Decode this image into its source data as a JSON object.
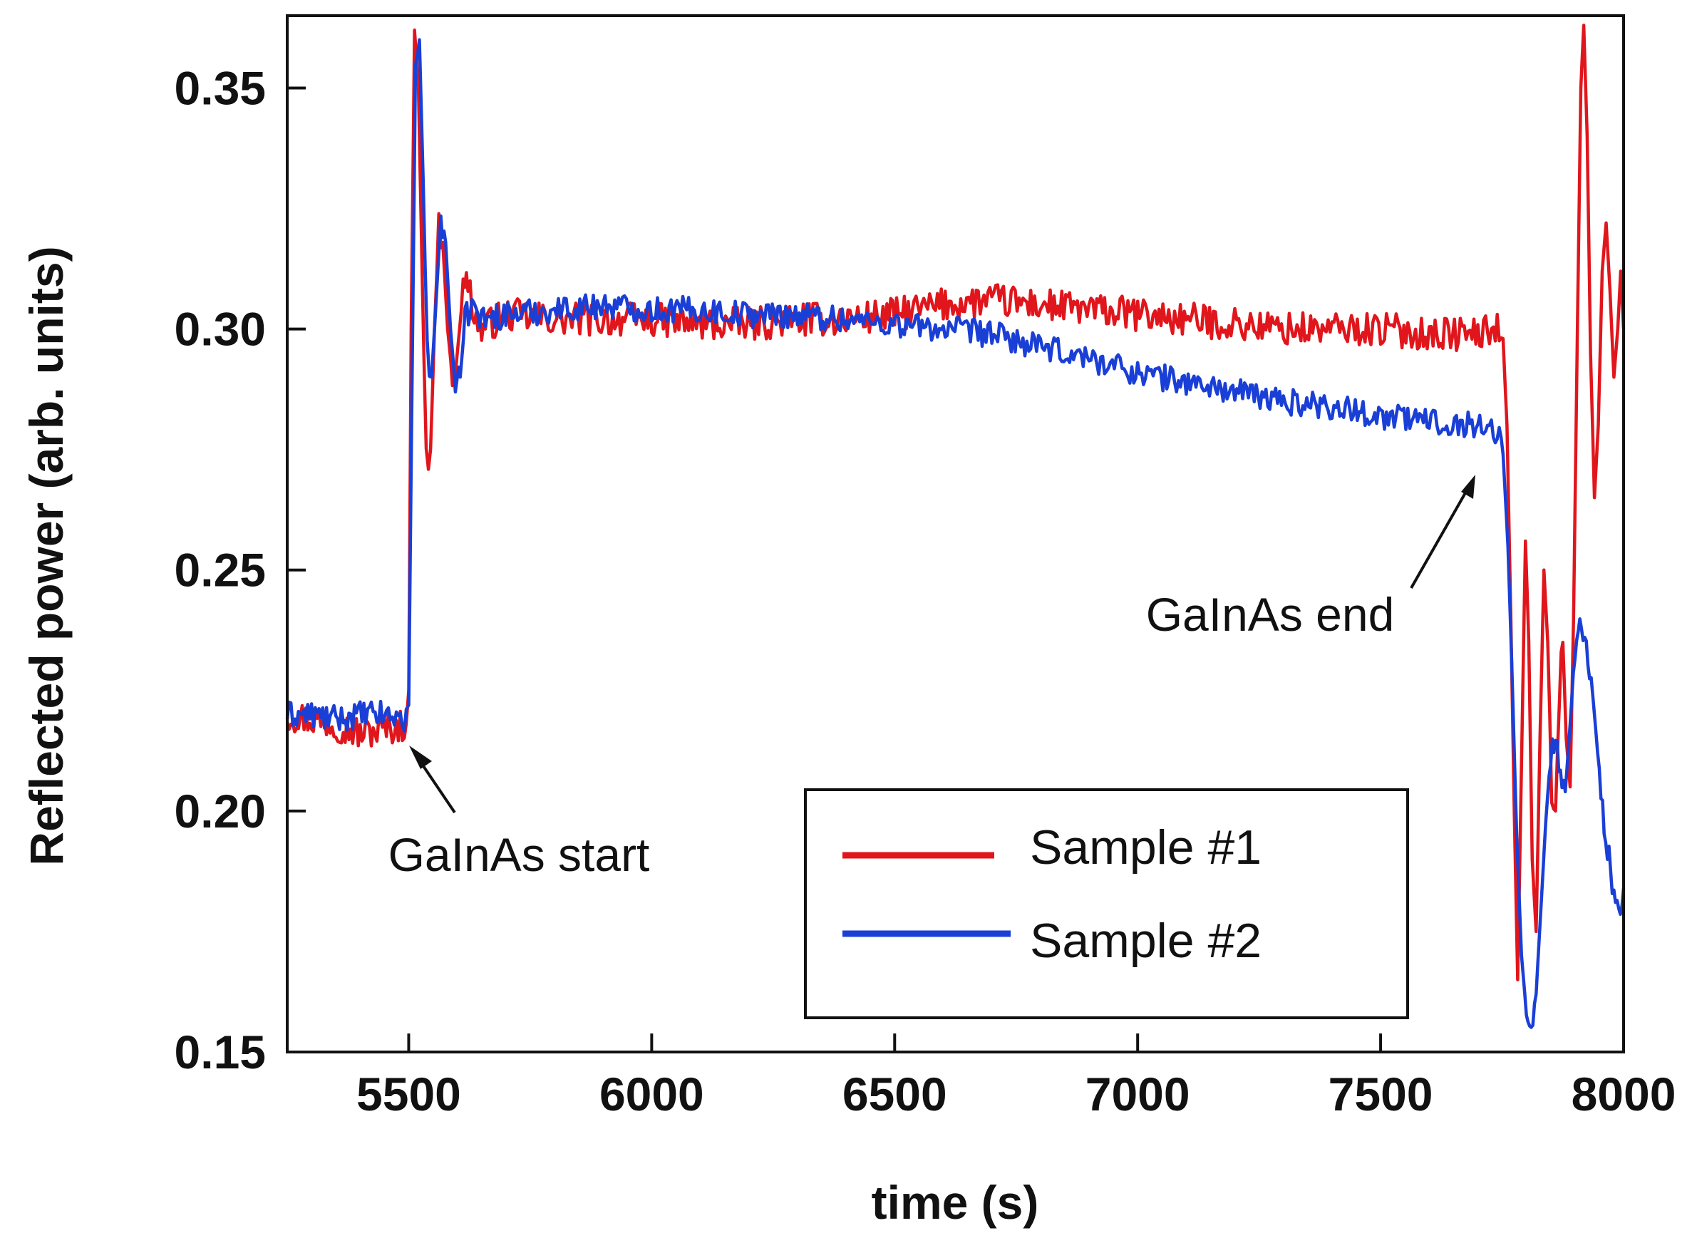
{
  "chart_data": {
    "type": "line",
    "title": "",
    "xlabel": "time (s)",
    "ylabel": "Reflected power (arb. units)",
    "xlim": [
      5250,
      8000
    ],
    "ylim": [
      0.15,
      0.365
    ],
    "xticks": [
      5500,
      6000,
      6500,
      7000,
      7500,
      8000
    ],
    "yticks": [
      0.15,
      0.2,
      0.25,
      0.3,
      0.35
    ],
    "xtick_labels": [
      "5500",
      "6000",
      "6500",
      "7000",
      "7500",
      "8000"
    ],
    "ytick_labels": [
      "0.15",
      "0.20",
      "0.25",
      "0.30",
      "0.35"
    ],
    "grid": false,
    "legend_position": "bottom-center",
    "series": [
      {
        "name": "Sample #1",
        "color": "#e0161c",
        "noise": 0.0035,
        "points": [
          [
            5250,
            0.22
          ],
          [
            5300,
            0.219
          ],
          [
            5350,
            0.218
          ],
          [
            5400,
            0.216
          ],
          [
            5450,
            0.217
          ],
          [
            5495,
            0.218
          ],
          [
            5500,
            0.225
          ],
          [
            5505,
            0.3
          ],
          [
            5512,
            0.362
          ],
          [
            5520,
            0.35
          ],
          [
            5528,
            0.31
          ],
          [
            5536,
            0.272
          ],
          [
            5545,
            0.275
          ],
          [
            5553,
            0.3
          ],
          [
            5562,
            0.322
          ],
          [
            5570,
            0.318
          ],
          [
            5580,
            0.3
          ],
          [
            5590,
            0.29
          ],
          [
            5600,
            0.295
          ],
          [
            5612,
            0.308
          ],
          [
            5622,
            0.31
          ],
          [
            5635,
            0.303
          ],
          [
            5650,
            0.3
          ],
          [
            5700,
            0.303
          ],
          [
            5800,
            0.302
          ],
          [
            5900,
            0.302
          ],
          [
            6000,
            0.302
          ],
          [
            6100,
            0.301
          ],
          [
            6200,
            0.301
          ],
          [
            6300,
            0.302
          ],
          [
            6400,
            0.302
          ],
          [
            6500,
            0.303
          ],
          [
            6600,
            0.305
          ],
          [
            6700,
            0.306
          ],
          [
            6800,
            0.305
          ],
          [
            6900,
            0.304
          ],
          [
            7000,
            0.303
          ],
          [
            7100,
            0.302
          ],
          [
            7200,
            0.301
          ],
          [
            7300,
            0.3
          ],
          [
            7400,
            0.3
          ],
          [
            7500,
            0.3
          ],
          [
            7600,
            0.299
          ],
          [
            7700,
            0.299
          ],
          [
            7740,
            0.3
          ],
          [
            7752,
            0.298
          ],
          [
            7760,
            0.28
          ],
          [
            7768,
            0.24
          ],
          [
            7775,
            0.2
          ],
          [
            7782,
            0.165
          ],
          [
            7790,
            0.21
          ],
          [
            7798,
            0.256
          ],
          [
            7805,
            0.235
          ],
          [
            7812,
            0.19
          ],
          [
            7820,
            0.175
          ],
          [
            7828,
            0.215
          ],
          [
            7836,
            0.25
          ],
          [
            7844,
            0.235
          ],
          [
            7852,
            0.205
          ],
          [
            7860,
            0.2
          ],
          [
            7868,
            0.225
          ],
          [
            7875,
            0.235
          ],
          [
            7882,
            0.215
          ],
          [
            7890,
            0.205
          ],
          [
            7897,
            0.24
          ],
          [
            7905,
            0.3
          ],
          [
            7912,
            0.35
          ],
          [
            7918,
            0.363
          ],
          [
            7925,
            0.34
          ],
          [
            7932,
            0.295
          ],
          [
            7940,
            0.265
          ],
          [
            7948,
            0.28
          ],
          [
            7956,
            0.312
          ],
          [
            7964,
            0.322
          ],
          [
            7972,
            0.308
          ],
          [
            7980,
            0.29
          ],
          [
            7988,
            0.3
          ],
          [
            7994,
            0.312
          ],
          [
            8000,
            0.3
          ]
        ]
      },
      {
        "name": "Sample #2",
        "color": "#1a3fd6",
        "noise": 0.0028,
        "points": [
          [
            5250,
            0.22
          ],
          [
            5300,
            0.22
          ],
          [
            5350,
            0.219
          ],
          [
            5400,
            0.22
          ],
          [
            5450,
            0.22
          ],
          [
            5495,
            0.219
          ],
          [
            5500,
            0.222
          ],
          [
            5506,
            0.28
          ],
          [
            5514,
            0.355
          ],
          [
            5522,
            0.36
          ],
          [
            5530,
            0.33
          ],
          [
            5538,
            0.295
          ],
          [
            5547,
            0.29
          ],
          [
            5556,
            0.305
          ],
          [
            5566,
            0.323
          ],
          [
            5576,
            0.318
          ],
          [
            5586,
            0.3
          ],
          [
            5596,
            0.288
          ],
          [
            5606,
            0.29
          ],
          [
            5616,
            0.302
          ],
          [
            5630,
            0.305
          ],
          [
            5650,
            0.302
          ],
          [
            5700,
            0.303
          ],
          [
            5800,
            0.304
          ],
          [
            5900,
            0.305
          ],
          [
            6000,
            0.304
          ],
          [
            6100,
            0.304
          ],
          [
            6200,
            0.303
          ],
          [
            6300,
            0.303
          ],
          [
            6400,
            0.302
          ],
          [
            6500,
            0.301
          ],
          [
            6600,
            0.3
          ],
          [
            6700,
            0.299
          ],
          [
            6800,
            0.296
          ],
          [
            6900,
            0.294
          ],
          [
            7000,
            0.291
          ],
          [
            7100,
            0.289
          ],
          [
            7200,
            0.287
          ],
          [
            7300,
            0.285
          ],
          [
            7400,
            0.284
          ],
          [
            7500,
            0.282
          ],
          [
            7600,
            0.281
          ],
          [
            7700,
            0.28
          ],
          [
            7740,
            0.279
          ],
          [
            7752,
            0.274
          ],
          [
            7762,
            0.255
          ],
          [
            7770,
            0.23
          ],
          [
            7780,
            0.195
          ],
          [
            7790,
            0.17
          ],
          [
            7800,
            0.158
          ],
          [
            7810,
            0.153
          ],
          [
            7820,
            0.162
          ],
          [
            7830,
            0.18
          ],
          [
            7840,
            0.198
          ],
          [
            7850,
            0.212
          ],
          [
            7860,
            0.215
          ],
          [
            7870,
            0.207
          ],
          [
            7880,
            0.204
          ],
          [
            7890,
            0.218
          ],
          [
            7900,
            0.234
          ],
          [
            7910,
            0.239
          ],
          [
            7920,
            0.236
          ],
          [
            7930,
            0.229
          ],
          [
            7940,
            0.22
          ],
          [
            7950,
            0.208
          ],
          [
            7960,
            0.198
          ],
          [
            7970,
            0.19
          ],
          [
            7980,
            0.183
          ],
          [
            7990,
            0.179
          ],
          [
            8000,
            0.184
          ]
        ]
      }
    ],
    "annotations": [
      {
        "text": "GaInAs start",
        "x": 5500,
        "y": 0.217
      },
      {
        "text": "GaInAs end",
        "x": 7740,
        "y": 0.278
      }
    ]
  }
}
